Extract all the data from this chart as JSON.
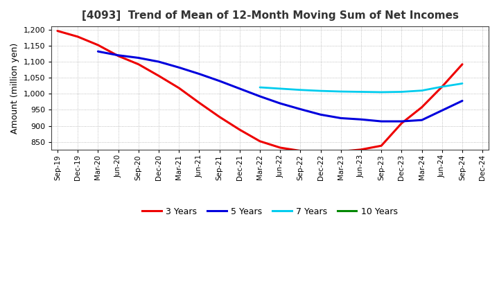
{
  "title": "[4093]  Trend of Mean of 12-Month Moving Sum of Net Incomes",
  "ylabel": "Amount (million yen)",
  "background_color": "#ffffff",
  "grid_color": "#888888",
  "ylim": [
    825,
    1210
  ],
  "yticks": [
    850,
    900,
    950,
    1000,
    1050,
    1100,
    1150,
    1200
  ],
  "x_labels": [
    "Sep-19",
    "Dec-19",
    "Mar-20",
    "Jun-20",
    "Sep-20",
    "Dec-20",
    "Mar-21",
    "Jun-21",
    "Sep-21",
    "Dec-21",
    "Mar-22",
    "Jun-22",
    "Sep-22",
    "Dec-22",
    "Mar-23",
    "Jun-23",
    "Sep-23",
    "Dec-23",
    "Mar-24",
    "Jun-24",
    "Sep-24",
    "Dec-24"
  ],
  "series": {
    "3 Years": {
      "color": "#ee0000",
      "linewidth": 2.2,
      "data_x": [
        0,
        1,
        2,
        3,
        4,
        5,
        6,
        7,
        8,
        9,
        10,
        11,
        12,
        13,
        14,
        15,
        16,
        17,
        18,
        19,
        20
      ],
      "data_y": [
        1196,
        1178,
        1152,
        1118,
        1092,
        1056,
        1018,
        972,
        928,
        888,
        852,
        832,
        822,
        818,
        820,
        826,
        838,
        908,
        958,
        1022,
        1092
      ]
    },
    "5 Years": {
      "color": "#0000dd",
      "linewidth": 2.2,
      "data_x": [
        2,
        3,
        4,
        5,
        6,
        7,
        8,
        9,
        10,
        11,
        12,
        13,
        14,
        15,
        16,
        17,
        18,
        19,
        20
      ],
      "data_y": [
        1132,
        1120,
        1112,
        1100,
        1082,
        1062,
        1040,
        1016,
        992,
        970,
        952,
        935,
        924,
        920,
        914,
        914,
        918,
        948,
        978
      ]
    },
    "7 Years": {
      "color": "#00ccee",
      "linewidth": 2.0,
      "data_x": [
        10,
        11,
        12,
        13,
        14,
        15,
        16,
        17,
        18,
        19,
        20
      ],
      "data_y": [
        1020,
        1016,
        1012,
        1009,
        1007,
        1006,
        1005,
        1006,
        1010,
        1022,
        1032
      ]
    },
    "10 Years": {
      "color": "#008800",
      "linewidth": 2.0,
      "data_x": [],
      "data_y": []
    }
  },
  "legend_entries": [
    "3 Years",
    "5 Years",
    "7 Years",
    "10 Years"
  ],
  "legend_colors": [
    "#ee0000",
    "#0000dd",
    "#00ccee",
    "#008800"
  ],
  "title_fontsize": 11,
  "ylabel_fontsize": 9,
  "tick_fontsize": 8,
  "xtick_fontsize": 7.5
}
